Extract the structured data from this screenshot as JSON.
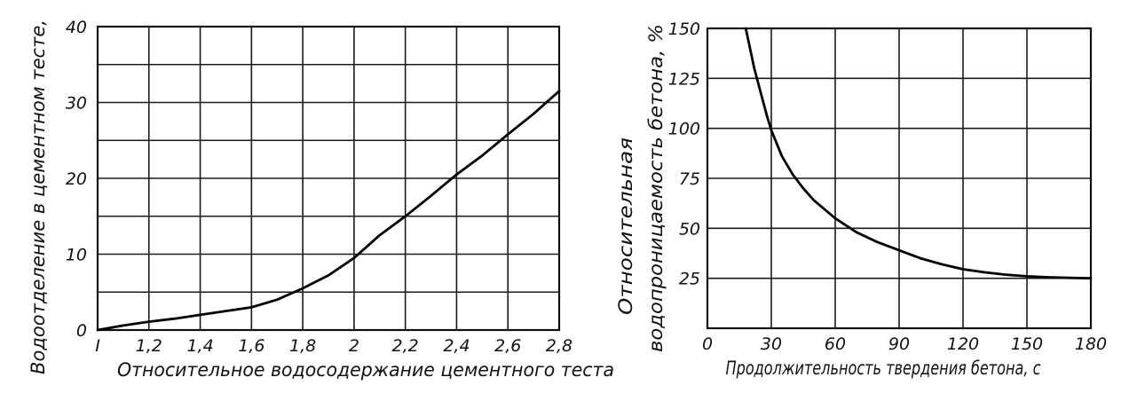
{
  "chart_data": [
    {
      "type": "line",
      "xlabel": "Относительное водосодержание цементного теста",
      "ylabel": "Водоотделение в цементном тесте,",
      "xlim": [
        1.0,
        2.8
      ],
      "ylim": [
        0,
        40
      ],
      "x_tick_labels": [
        "I",
        "1,2",
        "1,4",
        "1,6",
        "1,8",
        "2",
        "2,2",
        "2,4",
        "2,6",
        "2,8"
      ],
      "x_ticks": [
        1.0,
        1.2,
        1.4,
        1.6,
        1.8,
        2.0,
        2.2,
        2.4,
        2.6,
        2.8
      ],
      "y_tick_labels": [
        "0",
        "10",
        "20",
        "30",
        "40"
      ],
      "y_ticks": [
        0,
        10,
        20,
        30,
        40
      ],
      "grid": true,
      "series": [
        {
          "x": [
            1.0,
            1.1,
            1.2,
            1.3,
            1.4,
            1.5,
            1.6,
            1.7,
            1.8,
            1.9,
            2.0,
            2.1,
            2.2,
            2.3,
            2.4,
            2.5,
            2.6,
            2.7,
            2.8
          ],
          "y": [
            0,
            0.6,
            1.1,
            1.5,
            2.0,
            2.5,
            3.0,
            4.0,
            5.5,
            7.2,
            9.5,
            12.5,
            15.0,
            17.7,
            20.5,
            23.0,
            25.8,
            28.5,
            31.5
          ]
        }
      ]
    },
    {
      "type": "line",
      "xlabel": "Продолжительность твердения бетона, с",
      "ylabel_lines": [
        "Относительная",
        "водопроницаемость   бетона, %"
      ],
      "xlim": [
        0,
        180
      ],
      "ylim": [
        0,
        150
      ],
      "x_tick_labels": [
        "0",
        "30",
        "60",
        "90",
        "120",
        "150",
        "180"
      ],
      "x_ticks": [
        0,
        30,
        60,
        90,
        120,
        150,
        180
      ],
      "y_tick_labels": [
        "25",
        "50",
        "75",
        "100",
        "125",
        "150"
      ],
      "y_ticks": [
        25,
        50,
        75,
        100,
        125,
        150
      ],
      "grid": true,
      "series": [
        {
          "x": [
            18,
            20,
            22,
            25,
            28,
            30,
            35,
            40,
            45,
            50,
            60,
            70,
            80,
            90,
            100,
            110,
            120,
            130,
            140,
            150,
            160,
            170,
            180
          ],
          "y": [
            150,
            140,
            130,
            118,
            106,
            99,
            86,
            77,
            70,
            64,
            55,
            48,
            43,
            39,
            35,
            32,
            29.5,
            28,
            26.8,
            26,
            25.5,
            25.2,
            25
          ]
        }
      ]
    }
  ]
}
